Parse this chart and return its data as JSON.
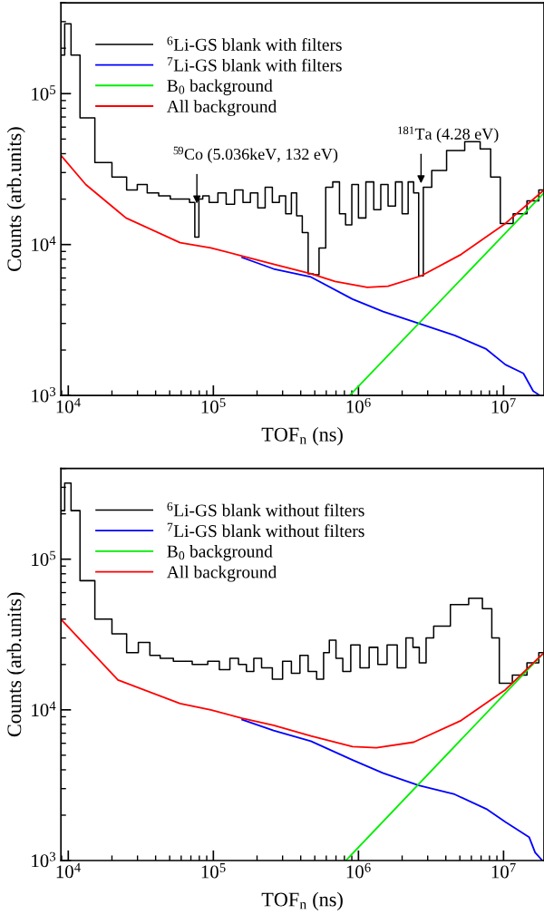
{
  "chart_data": [
    {
      "type": "line",
      "xlabel": "TOF$_{n}$ (ns)",
      "ylabel": "Counts (arb.units)",
      "log": "xy",
      "legend": "top left",
      "grid": false,
      "xlim": [
        8900,
        19000000
      ],
      "ylim": [
        1000,
        400000
      ],
      "xticks": [
        {
          "value": 10000,
          "label": "10$^{4}$"
        },
        {
          "value": 100000,
          "label": "10$^{5}$"
        },
        {
          "value": 1000000,
          "label": "10$^{6}$"
        },
        {
          "value": 10000000,
          "label": "10$^{7}$"
        }
      ],
      "yticks": [
        {
          "value": 1000,
          "label": "10$^{3}$"
        },
        {
          "value": 10000,
          "label": "10$^{4}$"
        },
        {
          "value": 100000,
          "label": "10$^{5}$"
        }
      ],
      "annotations": [
        {
          "text": "$^{59}$Co (5.036keV, 132 eV)",
          "x": 77000,
          "y": 18000
        },
        {
          "text": "$^{181}$Ta (4.28 eV)",
          "x": 2700000,
          "y": 24500
        }
      ],
      "series": [
        {
          "name": "$^{6}$Li-GS blank with filters",
          "color": "#000000",
          "type": "step",
          "x": [
            8900,
            10000,
            10900,
            13200,
            17300,
            22700,
            27800,
            32000,
            38000,
            46000,
            55000,
            65000,
            72000,
            77000,
            82000,
            87000,
            100000,
            115000,
            130000,
            150000,
            170000,
            190000,
            215000,
            240000,
            270000,
            300000,
            330000,
            360000,
            390000,
            430000,
            470000,
            510000,
            560000,
            630000,
            700000,
            780000,
            850000,
            950000,
            1050000,
            1200000,
            1350000,
            1500000,
            1700000,
            1900000,
            2100000,
            2300000,
            2500000,
            2700000,
            2900000,
            3500000,
            4600000,
            6200000,
            7600000,
            8700000,
            10300000,
            13000000,
            16000000,
            19000000
          ],
          "values": [
            180000,
            290000,
            180000,
            69000,
            35000,
            28000,
            23000,
            25000,
            22000,
            21000,
            20000,
            20000,
            19000,
            11200,
            20000,
            21000,
            19000,
            22000,
            18500,
            23000,
            19000,
            22000,
            17500,
            24000,
            19000,
            21000,
            16000,
            22000,
            15500,
            12000,
            6400,
            6300,
            9500,
            24000,
            26000,
            16000,
            13500,
            25000,
            15000,
            26000,
            17000,
            25000,
            18000,
            26000,
            16000,
            26000,
            22000,
            6200,
            24000,
            31000,
            42000,
            48000,
            43000,
            28000,
            13800,
            16000,
            19500,
            23000
          ]
        },
        {
          "name": "$^{7}$Li-GS blank with filters",
          "color": "#0000ff",
          "x": [
            158000,
            260000,
            470000,
            910000,
            1480000,
            2600000,
            4600000,
            7600000,
            10300000,
            13700000,
            16000000,
            17800000
          ],
          "values": [
            8200,
            6900,
            6100,
            4350,
            3600,
            3000,
            2500,
            2030,
            1600,
            1400,
            1070,
            1000
          ]
        },
        {
          "name": "B$_{0}$ background",
          "color": "#00ee00",
          "x": [
            870000,
            19000000
          ],
          "values": [
            1000,
            22000
          ]
        },
        {
          "name": "All background",
          "color": "#ff0000",
          "x": [
            8900,
            13200,
            22000,
            25000,
            59000,
            96000,
            158000,
            260000,
            470000,
            690000,
            1150000,
            1600000,
            2700000,
            5100000,
            10300000,
            19000000
          ],
          "values": [
            39000,
            25000,
            16600,
            15000,
            10300,
            9500,
            8400,
            7400,
            6400,
            5700,
            5200,
            5300,
            6200,
            8600,
            13800,
            23000
          ]
        }
      ]
    },
    {
      "type": "line",
      "xlabel": "TOF$_{n}$ (ns)",
      "ylabel": "Counts (arb.units)",
      "log": "xy",
      "legend": "top left",
      "grid": false,
      "xlim": [
        8900,
        19000000
      ],
      "ylim": [
        1000,
        400000
      ],
      "xticks": [
        {
          "value": 10000,
          "label": "10$^{4}$"
        },
        {
          "value": 100000,
          "label": "10$^{5}$"
        },
        {
          "value": 1000000,
          "label": "10$^{6}$"
        },
        {
          "value": 10000000,
          "label": "10$^{7}$"
        }
      ],
      "yticks": [
        {
          "value": 1000,
          "label": "10$^{3}$"
        },
        {
          "value": 10000,
          "label": "10$^{4}$"
        },
        {
          "value": 100000,
          "label": "10$^{5}$"
        }
      ],
      "series": [
        {
          "name": "$^{6}$Li-GS blank without filters",
          "color": "#000000",
          "type": "step",
          "x": [
            8900,
            10000,
            10900,
            13200,
            17300,
            22700,
            27800,
            33000,
            40000,
            46000,
            60000,
            83000,
            100000,
            120000,
            140000,
            158000,
            180000,
            200000,
            230000,
            280000,
            320000,
            370000,
            420000,
            480000,
            550000,
            600000,
            660000,
            740000,
            820000,
            950000,
            1100000,
            1270000,
            1450000,
            1700000,
            2000000,
            2250000,
            2500000,
            2750000,
            3100000,
            3500000,
            5100000,
            6400000,
            7900000,
            8700000,
            10000000,
            13000000,
            16000000,
            19000000
          ],
          "values": [
            210000,
            320000,
            210000,
            72000,
            40000,
            32000,
            24000,
            28000,
            23000,
            22000,
            21000,
            20000,
            21000,
            18500,
            22000,
            20000,
            18000,
            22000,
            19000,
            16000,
            21000,
            17500,
            23000,
            18000,
            16000,
            24000,
            29000,
            22000,
            18000,
            27000,
            19000,
            26000,
            20000,
            27000,
            19000,
            30000,
            26000,
            20500,
            30000,
            36000,
            50000,
            55000,
            47000,
            30000,
            15000,
            17000,
            20500,
            24000
          ]
        },
        {
          "name": "$^{7}$Li-GS blank without filters",
          "color": "#0000ff",
          "x": [
            158000,
            260000,
            470000,
            910000,
            1480000,
            2600000,
            4600000,
            7600000,
            10300000,
            15000000,
            16500000,
            18500000
          ],
          "values": [
            8600,
            7300,
            6200,
            4650,
            3800,
            3150,
            2750,
            2200,
            1800,
            1430,
            1130,
            1000
          ]
        },
        {
          "name": "B$_{0}$ background",
          "color": "#00ee00",
          "x": [
            820000,
            19000000
          ],
          "values": [
            1000,
            24000
          ]
        },
        {
          "name": "All background",
          "color": "#ff0000",
          "x": [
            8900,
            22000,
            59000,
            96000,
            158000,
            260000,
            470000,
            910000,
            1330000,
            2400000,
            5100000,
            10300000,
            19000000
          ],
          "values": [
            40000,
            15800,
            11000,
            10000,
            8800,
            7900,
            6700,
            5700,
            5600,
            6100,
            8500,
            13600,
            24000
          ]
        }
      ]
    }
  ]
}
